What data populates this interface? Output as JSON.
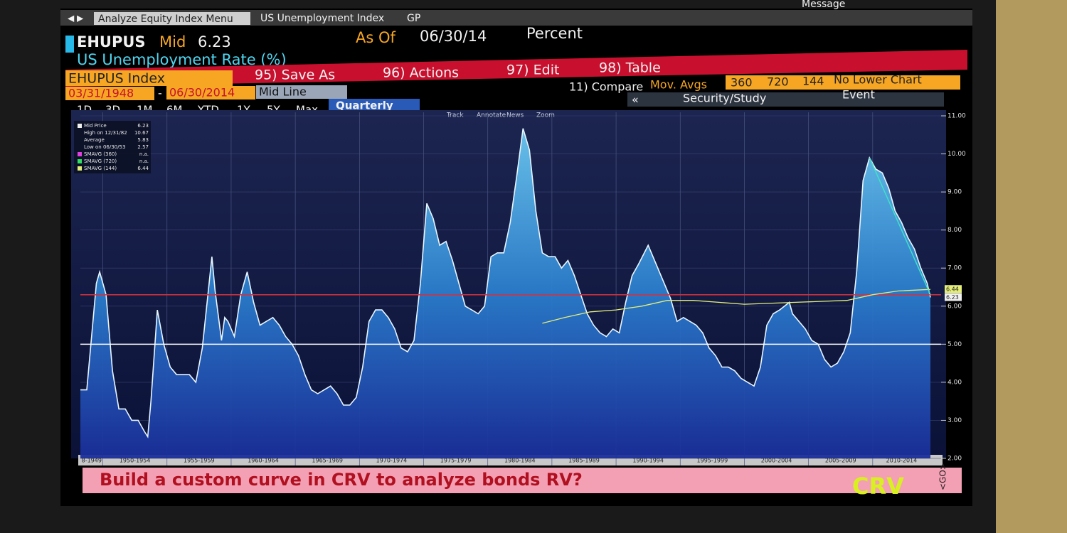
{
  "menu": {
    "tabs": [
      "Analyze Equity Index Menu",
      "US Unemployment Index",
      "GP"
    ],
    "message": "Message"
  },
  "header": {
    "ticker": "EHUPUS",
    "field": "Mid",
    "last": 6.23,
    "as_of_label": "As Of",
    "as_of": "06/30/14",
    "unit": "Percent",
    "title": "US Unemployment Rate (%)",
    "chart_kind": "Line Chart"
  },
  "actions": {
    "security": "EHUPUS Index",
    "items": [
      "95) Save As",
      "96) Actions",
      "97) Edit",
      "98) Table"
    ]
  },
  "range": {
    "start": "03/31/1948",
    "separator": "-",
    "end": "06/30/2014",
    "mode": "Mid Line",
    "compare": "11) Compare",
    "mov_avgs": "Mov. Avgs",
    "avg_periods": [
      "360",
      "720",
      "144"
    ],
    "lower": "No Lower Chart"
  },
  "periods": {
    "items": [
      "1D",
      "3D",
      "1M",
      "6M",
      "YTD",
      "1Y",
      "5Y",
      "Max"
    ],
    "selected": "Quarterly",
    "collapse": "«",
    "study": "Security/Study",
    "event": "Event"
  },
  "tools": [
    "Track",
    "Annotate",
    "News",
    "Zoom"
  ],
  "chart_data": {
    "type": "area",
    "x": [
      1948.25,
      1948.75,
      1949.5,
      1949.75,
      1950.25,
      1950.75,
      1951.25,
      1951.75,
      1952.25,
      1952.75,
      1953.25,
      1953.5,
      1953.75,
      1954.25,
      1954.75,
      1955.25,
      1955.75,
      1956.25,
      1956.75,
      1957.25,
      1957.75,
      1958.5,
      1958.75,
      1959.25,
      1959.5,
      1959.75,
      1960.25,
      1960.75,
      1961.25,
      1961.75,
      1962.25,
      1962.75,
      1963.25,
      1963.75,
      1964.25,
      1964.75,
      1965.25,
      1965.75,
      1966.25,
      1966.75,
      1967.25,
      1967.75,
      1968.25,
      1968.75,
      1969.25,
      1969.75,
      1970.25,
      1970.75,
      1971.25,
      1971.75,
      1972.25,
      1972.75,
      1973.25,
      1973.75,
      1974.25,
      1974.75,
      1975.25,
      1975.75,
      1976.25,
      1976.75,
      1977.25,
      1977.75,
      1978.25,
      1978.75,
      1979.25,
      1979.75,
      1980.25,
      1980.75,
      1981.25,
      1981.75,
      1982.25,
      1982.75,
      1983.25,
      1983.75,
      1984.25,
      1984.75,
      1985.25,
      1985.75,
      1986.25,
      1986.75,
      1987.25,
      1987.75,
      1988.25,
      1988.75,
      1989.25,
      1989.75,
      1990.25,
      1990.75,
      1991.25,
      1991.75,
      1992.5,
      1992.75,
      1993.25,
      1993.75,
      1994.25,
      1994.75,
      1995.25,
      1995.75,
      1996.25,
      1996.75,
      1997.25,
      1997.75,
      1998.25,
      1998.75,
      1999.25,
      1999.75,
      2000.25,
      2000.75,
      2001.25,
      2001.75,
      2002.25,
      2002.75,
      2003.5,
      2003.75,
      2004.25,
      2004.75,
      2005.25,
      2005.75,
      2006.25,
      2006.75,
      2007.25,
      2007.75,
      2008.25,
      2008.75,
      2009.25,
      2009.75,
      2010.25,
      2010.75,
      2011.25,
      2011.75,
      2012.25,
      2012.75,
      2013.25,
      2013.75,
      2014.25,
      2014.5
    ],
    "series": [
      {
        "name": "Mid Price",
        "color": "#e8f6ff",
        "legend_value": 6.23,
        "values": [
          3.8,
          3.8,
          6.6,
          6.9,
          6.3,
          4.3,
          3.3,
          3.3,
          3.0,
          3.0,
          2.7,
          2.57,
          3.5,
          5.9,
          5.0,
          4.4,
          4.2,
          4.2,
          4.2,
          4.0,
          4.9,
          7.3,
          6.4,
          5.1,
          5.7,
          5.6,
          5.2,
          6.3,
          6.9,
          6.1,
          5.5,
          5.6,
          5.7,
          5.5,
          5.2,
          5.0,
          4.7,
          4.2,
          3.8,
          3.7,
          3.8,
          3.9,
          3.7,
          3.4,
          3.4,
          3.6,
          4.4,
          5.6,
          5.9,
          5.9,
          5.7,
          5.4,
          4.9,
          4.8,
          5.1,
          6.6,
          8.7,
          8.3,
          7.6,
          7.7,
          7.2,
          6.6,
          6.0,
          5.9,
          5.8,
          6.0,
          7.3,
          7.4,
          7.4,
          8.2,
          9.4,
          10.67,
          10.1,
          8.5,
          7.4,
          7.3,
          7.3,
          7.0,
          7.2,
          6.8,
          6.3,
          5.8,
          5.5,
          5.3,
          5.2,
          5.4,
          5.3,
          6.1,
          6.8,
          7.1,
          7.6,
          7.4,
          7.0,
          6.6,
          6.2,
          5.6,
          5.7,
          5.6,
          5.5,
          5.3,
          4.9,
          4.7,
          4.4,
          4.4,
          4.3,
          4.1,
          4.0,
          3.9,
          4.4,
          5.5,
          5.8,
          5.9,
          6.1,
          5.8,
          5.6,
          5.4,
          5.1,
          5.0,
          4.6,
          4.4,
          4.5,
          4.8,
          5.3,
          6.9,
          9.3,
          9.9,
          9.6,
          9.5,
          9.1,
          8.5,
          8.2,
          7.8,
          7.5,
          7.0,
          6.6,
          6.23
        ]
      },
      {
        "name": "SMAVG (144)",
        "color": "#e4ee78",
        "legend_value": 6.44,
        "x": [
          1984.25,
          1986,
          1988,
          1990,
          1992,
          1994,
          1996,
          2000,
          2004,
          2008,
          2010,
          2012,
          2014.5
        ],
        "values": [
          5.55,
          5.7,
          5.85,
          5.9,
          6.0,
          6.15,
          6.15,
          6.05,
          6.1,
          6.15,
          6.3,
          6.4,
          6.44
        ]
      }
    ],
    "stats": [
      {
        "label": "High on 12/31/82",
        "value": 10.67
      },
      {
        "label": "Average",
        "value": 5.83
      },
      {
        "label": "Low on 06/30/53",
        "value": 2.57
      },
      {
        "label": "SMAVG (360)",
        "value": "n.a.",
        "color": "#e040e0"
      },
      {
        "label": "SMAVG (720)",
        "value": "n.a.",
        "color": "#30e060"
      }
    ],
    "reference_lines": [
      {
        "value": 6.3,
        "color": "#d8303c"
      },
      {
        "value": 5.0,
        "color": "#ffffff"
      }
    ],
    "trendline": {
      "x": [
        2009.75,
        2014.5
      ],
      "values": [
        9.9,
        6.3
      ],
      "color": "#40e0c8"
    },
    "xlim": [
      1948.25,
      2014.5
    ],
    "ylim": [
      2,
      11
    ],
    "yticks": [
      {
        "value": 2,
        "label": "2.00"
      },
      {
        "value": 3,
        "label": "3.00"
      },
      {
        "value": 4,
        "label": "4.00"
      },
      {
        "value": 5,
        "label": "5.00"
      },
      {
        "value": 6,
        "label": "6.00"
      },
      {
        "value": 7,
        "label": "7.00"
      },
      {
        "value": 8,
        "label": "8.00"
      },
      {
        "value": 9,
        "label": "9.00"
      },
      {
        "value": 10,
        "label": "10.00"
      },
      {
        "value": 11,
        "label": "11.00"
      }
    ],
    "xticks": [
      {
        "value": 1945,
        "label": "8-1949"
      },
      {
        "value": 1950,
        "label": "1950-1954"
      },
      {
        "value": 1955,
        "label": "1955-1959"
      },
      {
        "value": 1960,
        "label": "1960-1964"
      },
      {
        "value": 1965,
        "label": "1965-1969"
      },
      {
        "value": 1970,
        "label": "1970-1974"
      },
      {
        "value": 1975,
        "label": "1975-1979"
      },
      {
        "value": 1980,
        "label": "1980-1984"
      },
      {
        "value": 1985,
        "label": "1985-1989"
      },
      {
        "value": 1990,
        "label": "1990-1994"
      },
      {
        "value": 1995,
        "label": "1995-1999"
      },
      {
        "value": 2000,
        "label": "2000-2004"
      },
      {
        "value": 2005,
        "label": "2005-2009"
      },
      {
        "value": 2010,
        "label": "2010-2014"
      }
    ],
    "grid": true
  },
  "banner": {
    "text": "Build a custom curve in CRV to analyze bonds RV?",
    "brand": "CRV",
    "go": "<GO>"
  }
}
